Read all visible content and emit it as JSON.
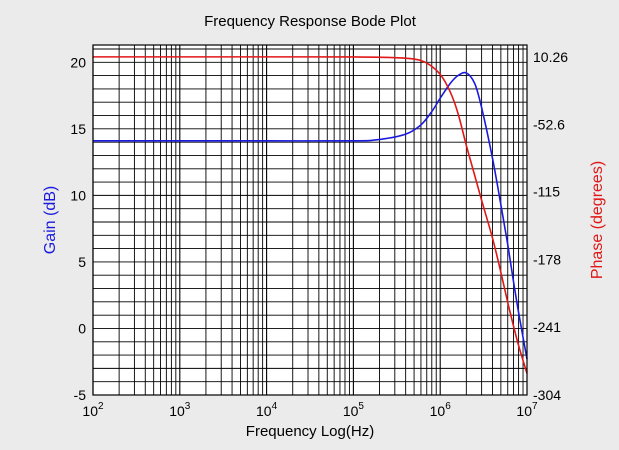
{
  "chart_data": {
    "type": "line",
    "title": "Frequency Response Bode Plot",
    "xlabel": "Frequency Log(Hz)",
    "ylabel_left": "Gain (dB)",
    "ylabel_right": "Phase (degrees)",
    "x_scale": "log",
    "xlim": [
      100,
      10000000
    ],
    "ylim_left": [
      -5,
      21.3
    ],
    "ylim_right": [
      -304,
      21.3
    ],
    "grid": true,
    "x_ticks": [
      {
        "base": "10",
        "exp": "2"
      },
      {
        "base": "10",
        "exp": "3"
      },
      {
        "base": "10",
        "exp": "4"
      },
      {
        "base": "10",
        "exp": "5"
      },
      {
        "base": "10",
        "exp": "6"
      },
      {
        "base": "10",
        "exp": "7"
      }
    ],
    "left_ticks": [
      "-5",
      "0",
      "5",
      "10",
      "15",
      "20"
    ],
    "left_tick_values": [
      -5,
      0,
      5,
      10,
      15,
      20
    ],
    "right_ticks": [
      "10.26",
      "-52.6",
      "-115",
      "-178",
      "-241",
      "-304"
    ],
    "right_tick_values": [
      10.26,
      -52.6,
      -115,
      -178,
      -241,
      -304
    ],
    "series": [
      {
        "name": "Gain",
        "axis": "left",
        "color": "#1a1adf",
        "x": [
          100,
          1000,
          10000,
          100000,
          200000,
          400000,
          600000,
          800000,
          1000000,
          1300000,
          1600000,
          2000000,
          2500000,
          3000000,
          4000000,
          5000000,
          6000000,
          7000000,
          8000000,
          10000000
        ],
        "y": [
          14.1,
          14.1,
          14.1,
          14.1,
          14.2,
          14.6,
          15.3,
          16.3,
          17.3,
          18.4,
          19.0,
          19.2,
          18.4,
          16.6,
          12.8,
          9.3,
          6.3,
          3.5,
          1.2,
          -2.3
        ]
      },
      {
        "name": "Phase",
        "axis": "right",
        "color": "#e01818",
        "x": [
          100,
          1000,
          10000,
          100000,
          300000,
          500000,
          700000,
          1000000,
          1300000,
          1600000,
          2000000,
          2500000,
          3000000,
          4000000,
          5000000,
          6000000,
          7000000,
          8000000,
          10000000
        ],
        "y": [
          10.26,
          10.26,
          10.26,
          10.2,
          9.5,
          8.2,
          4.5,
          -6,
          -22,
          -42,
          -72,
          -100,
          -123,
          -158,
          -190,
          -218,
          -240,
          -258,
          -284
        ]
      }
    ]
  }
}
